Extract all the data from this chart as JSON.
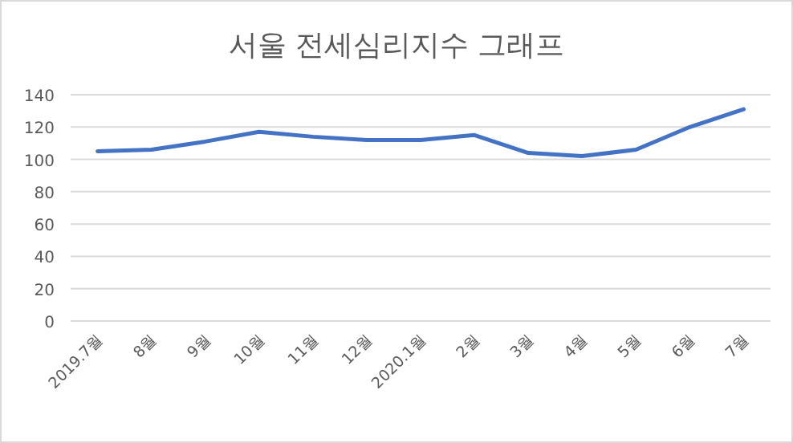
{
  "chart_data": {
    "type": "line",
    "title": "서울 전세심리지수 그래프",
    "categories": [
      "2019.7월",
      "8월",
      "9월",
      "10월",
      "11월",
      "12월",
      "2020.1월",
      "2월",
      "3월",
      "4월",
      "5월",
      "6월",
      "7월"
    ],
    "series": [
      {
        "color": "#4472c4",
        "values": [
          105,
          106,
          111,
          117,
          114,
          112,
          112,
          115,
          104,
          102,
          106,
          120,
          131
        ]
      }
    ],
    "ylim": [
      0,
      140
    ],
    "yticks": [
      0,
      20,
      40,
      60,
      80,
      100,
      120,
      140
    ],
    "grid": "y",
    "marker": "none",
    "line_style": "solid"
  }
}
